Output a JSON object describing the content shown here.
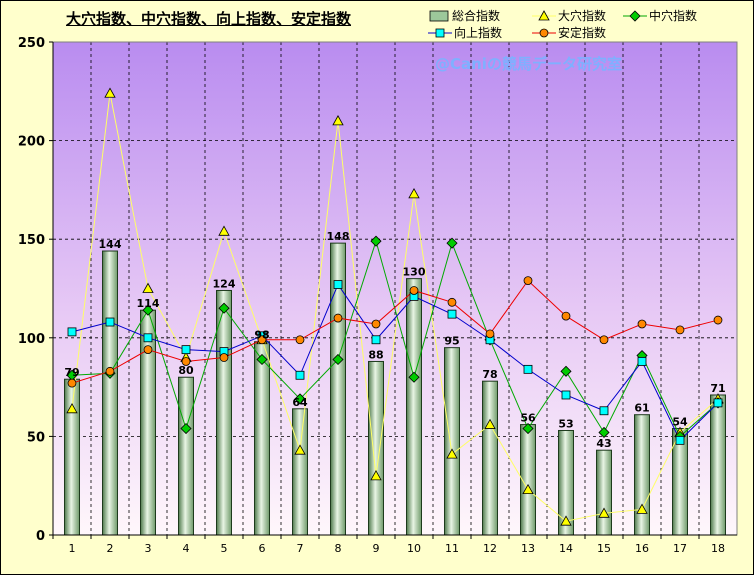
{
  "chart_data": {
    "type": "bar+line",
    "title": "大穴指数、中穴指数、向上指数、安定指数",
    "watermark": "@Caniの競馬データ研究室",
    "categories": [
      "1",
      "2",
      "3",
      "4",
      "5",
      "6",
      "7",
      "8",
      "9",
      "10",
      "11",
      "12",
      "13",
      "14",
      "15",
      "16",
      "17",
      "18"
    ],
    "ylim": [
      0,
      250
    ],
    "yticks": [
      0,
      50,
      100,
      150,
      200,
      250
    ],
    "grid": true,
    "legend_position": "top-right",
    "series": [
      {
        "name": "総合指数",
        "kind": "bar",
        "color": "#9cc89a",
        "values": [
          79,
          144,
          114,
          80,
          124,
          98,
          64,
          148,
          88,
          130,
          95,
          78,
          56,
          53,
          43,
          61,
          54,
          71
        ]
      },
      {
        "name": "大穴指数",
        "kind": "line",
        "color": "#ffff66",
        "marker": "triangle",
        "values": [
          64,
          224,
          125,
          90,
          154,
          99,
          43,
          210,
          30,
          173,
          41,
          56,
          23,
          7,
          11,
          13,
          52,
          69
        ]
      },
      {
        "name": "中穴指数",
        "kind": "line",
        "color": "#00aa00",
        "marker": "diamond",
        "values": [
          81,
          82,
          114,
          54,
          115,
          89,
          69,
          89,
          149,
          80,
          148,
          99,
          54,
          83,
          52,
          91,
          50,
          67
        ]
      },
      {
        "name": "向上指数",
        "kind": "line",
        "color": "#0000cc",
        "marker": "square",
        "values": [
          103,
          108,
          100,
          94,
          93,
          101,
          81,
          127,
          99,
          121,
          112,
          99,
          84,
          71,
          63,
          88,
          48,
          67
        ]
      },
      {
        "name": "安定指数",
        "kind": "line",
        "color": "#ee0000",
        "marker": "circle",
        "values": [
          77,
          83,
          94,
          88,
          90,
          99,
          99,
          110,
          107,
          124,
          118,
          102,
          129,
          111,
          99,
          107,
          104,
          109
        ]
      }
    ],
    "data_labels": [
      79,
      144,
      114,
      80,
      124,
      98,
      64,
      148,
      88,
      130,
      95,
      78,
      56,
      53,
      43,
      61,
      54,
      71
    ]
  },
  "legend": {
    "items": [
      {
        "label": "総合指数",
        "icon": "bar-swatch"
      },
      {
        "label": "大穴指数",
        "icon": "triangle-marker"
      },
      {
        "label": "中穴指数",
        "icon": "diamond-marker"
      },
      {
        "label": "向上指数",
        "icon": "square-marker"
      },
      {
        "label": "安定指数",
        "icon": "circle-marker"
      }
    ]
  }
}
